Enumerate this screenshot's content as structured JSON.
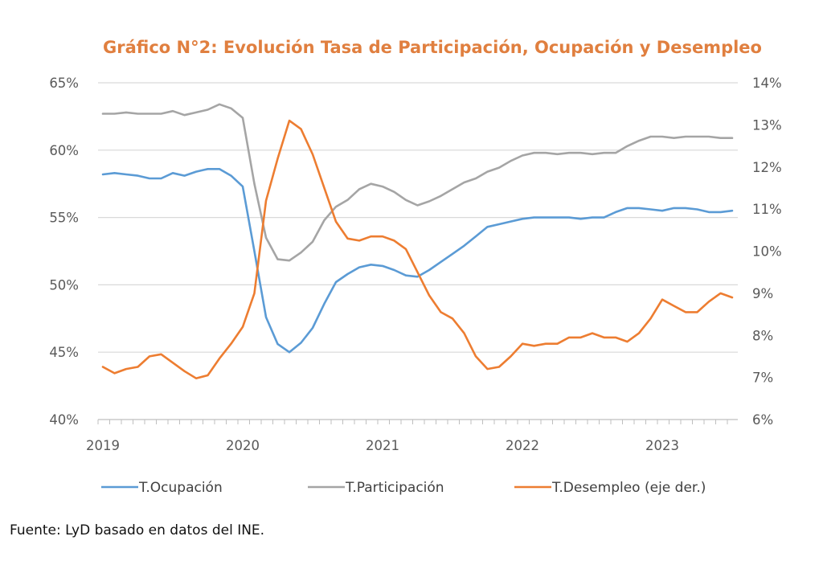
{
  "chart_data": {
    "type": "line",
    "title": "Gráfico N°2: Evolución Tasa de Participación, Ocupación y Desempleo",
    "xlabel": "",
    "ylabel": "",
    "x_tick_labels": [
      "2019",
      "2020",
      "2021",
      "2022",
      "2023"
    ],
    "x_start": "2019-01",
    "x_frequency": "monthly",
    "y_left": {
      "ylim": [
        40,
        65
      ],
      "ticks": [
        40,
        45,
        50,
        55,
        60,
        65
      ],
      "tick_labels": [
        "40%",
        "45%",
        "50%",
        "55%",
        "60%",
        "65%"
      ]
    },
    "y_right": {
      "ylim": [
        6,
        14
      ],
      "ticks": [
        6,
        7,
        8,
        9,
        10,
        11,
        12,
        13,
        14
      ],
      "tick_labels": [
        "6%",
        "7%",
        "8%",
        "9%",
        "10%",
        "11%",
        "12%",
        "13%",
        "14%"
      ]
    },
    "grid": true,
    "legend_position": "bottom",
    "series": [
      {
        "name": "T.Ocupación",
        "axis": "left",
        "color": "#5B9BD5",
        "values": [
          58.2,
          58.3,
          58.2,
          58.1,
          57.9,
          57.9,
          58.3,
          58.1,
          58.4,
          58.6,
          58.6,
          58.1,
          57.3,
          52.5,
          47.6,
          45.6,
          45.0,
          45.7,
          46.8,
          48.6,
          50.2,
          50.8,
          51.3,
          51.5,
          51.4,
          51.1,
          50.7,
          50.6,
          51.1,
          51.7,
          52.3,
          52.9,
          53.6,
          54.3,
          54.5,
          54.7,
          54.9,
          55.0,
          55.0,
          55.0,
          55.0,
          54.9,
          55.0,
          55.0,
          55.4,
          55.7,
          55.7,
          55.6,
          55.5,
          55.7,
          55.7,
          55.6,
          55.4,
          55.4,
          55.5
        ]
      },
      {
        "name": "T.Participación",
        "axis": "left",
        "color": "#A5A5A5",
        "values": [
          62.7,
          62.7,
          62.8,
          62.7,
          62.7,
          62.7,
          62.9,
          62.6,
          62.8,
          63.0,
          63.4,
          63.1,
          62.4,
          57.5,
          53.5,
          51.9,
          51.8,
          52.4,
          53.2,
          54.8,
          55.8,
          56.3,
          57.1,
          57.5,
          57.3,
          56.9,
          56.3,
          55.9,
          56.2,
          56.6,
          57.1,
          57.6,
          57.9,
          58.4,
          58.7,
          59.2,
          59.6,
          59.8,
          59.8,
          59.7,
          59.8,
          59.8,
          59.7,
          59.8,
          59.8,
          60.3,
          60.7,
          61.0,
          61.0,
          60.9,
          61.0,
          61.0,
          61.0,
          60.9,
          60.9
        ]
      },
      {
        "name": "T.Desempleo (eje der.)",
        "axis": "right",
        "color": "#ED7D31",
        "values": [
          7.25,
          7.1,
          7.2,
          7.25,
          7.5,
          7.55,
          7.35,
          7.15,
          6.98,
          7.05,
          7.45,
          7.8,
          8.2,
          9.0,
          11.2,
          12.2,
          13.1,
          12.9,
          12.3,
          11.5,
          10.7,
          10.3,
          10.25,
          10.35,
          10.35,
          10.25,
          10.05,
          9.5,
          8.95,
          8.55,
          8.4,
          8.05,
          7.5,
          7.2,
          7.25,
          7.5,
          7.8,
          7.75,
          7.8,
          7.8,
          7.95,
          7.95,
          8.05,
          7.95,
          7.95,
          7.85,
          8.05,
          8.4,
          8.85,
          8.7,
          8.55,
          8.55,
          8.8,
          9.0,
          8.9
        ]
      }
    ]
  },
  "source": "Fuente: LyD basado en datos del INE."
}
